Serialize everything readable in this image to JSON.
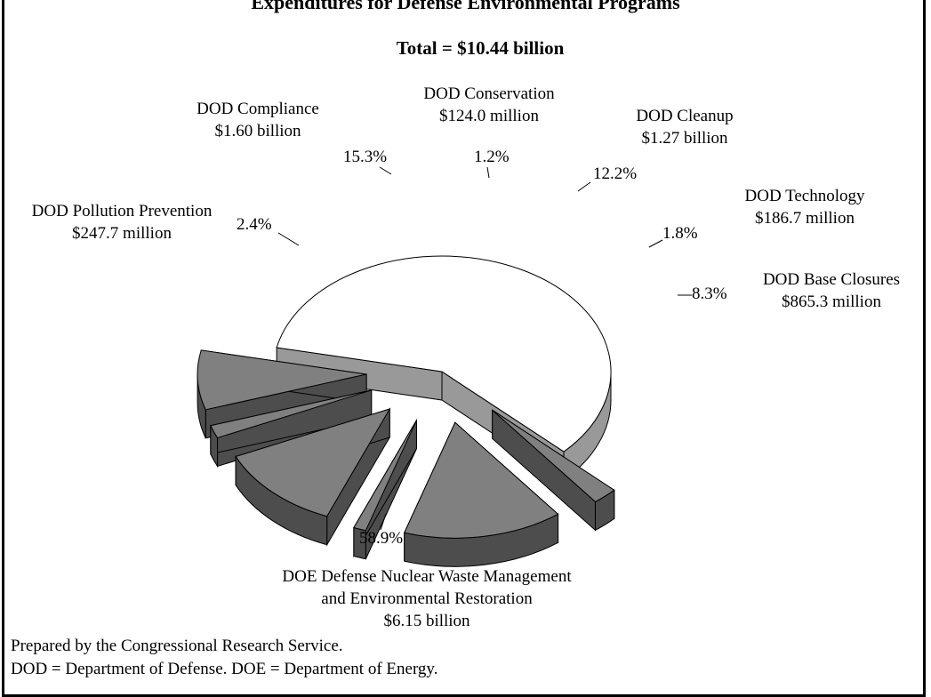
{
  "page": {
    "header_title": "Expenditures for Defense Environmental Programs"
  },
  "chart_data": {
    "type": "pie",
    "title": "Total = $10.44 billion",
    "slices": [
      {
        "name": "DOD Compliance",
        "amount": "$1.60 billion",
        "percent": 15.3,
        "percent_label": "15.3%",
        "color": "#808080",
        "exploded": true
      },
      {
        "name": "DOD Conservation",
        "amount": "$124.0 million",
        "percent": 1.2,
        "percent_label": "1.2%",
        "color": "#808080",
        "exploded": true
      },
      {
        "name": "DOD Cleanup",
        "amount": "$1.27 billion",
        "percent": 12.2,
        "percent_label": "12.2%",
        "color": "#808080",
        "exploded": true
      },
      {
        "name": "DOD Technology",
        "amount": "$186.7 million",
        "percent": 1.8,
        "percent_label": "1.8%",
        "color": "#808080",
        "exploded": true
      },
      {
        "name": "DOD Base Closures",
        "amount": "$865.3 million",
        "percent": 8.3,
        "percent_label": "8.3%",
        "color": "#808080",
        "exploded": true
      },
      {
        "name": "DOE Defense Nuclear Waste Management and Environmental Restoration",
        "name_lines": [
          "DOE Defense Nuclear Waste Management",
          "and Environmental Restoration"
        ],
        "amount": "$6.15 billion",
        "percent": 58.9,
        "percent_label": "58.9%",
        "color": "#ffffff",
        "exploded": false
      },
      {
        "name": "DOD Pollution Prevention",
        "amount": "$247.7 million",
        "percent": 2.4,
        "percent_label": "2.4%",
        "color": "#808080",
        "exploded": true
      }
    ],
    "side_color": "#4d4d4d",
    "main_side_color": "#999999"
  },
  "footer": {
    "source": "Prepared by the Congressional Research Service.",
    "abbrev": "DOD = Department of Defense. DOE = Department of Energy."
  }
}
